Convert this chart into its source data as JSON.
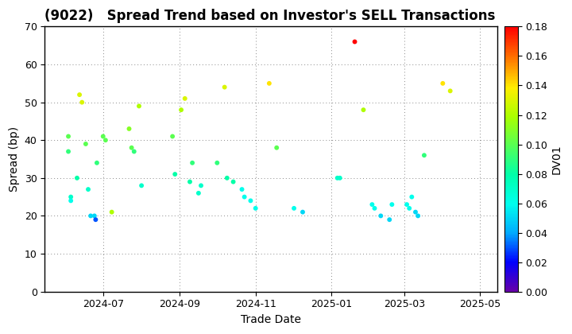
{
  "title": "(9022)   Spread Trend based on Investor's SELL Transactions",
  "xlabel": "Trade Date",
  "ylabel": "Spread (bp)",
  "colorbar_label": "DV01",
  "ylim": [
    0,
    70
  ],
  "clim": [
    0.0,
    0.18
  ],
  "points": [
    {
      "date": "2024-06-03",
      "spread": 37,
      "dv01": 0.09
    },
    {
      "date": "2024-06-03",
      "spread": 41,
      "dv01": 0.1
    },
    {
      "date": "2024-06-05",
      "spread": 25,
      "dv01": 0.07
    },
    {
      "date": "2024-06-05",
      "spread": 24,
      "dv01": 0.06
    },
    {
      "date": "2024-06-10",
      "spread": 30,
      "dv01": 0.08
    },
    {
      "date": "2024-06-12",
      "spread": 52,
      "dv01": 0.13
    },
    {
      "date": "2024-06-14",
      "spread": 50,
      "dv01": 0.13
    },
    {
      "date": "2024-06-17",
      "spread": 39,
      "dv01": 0.1
    },
    {
      "date": "2024-06-19",
      "spread": 27,
      "dv01": 0.07
    },
    {
      "date": "2024-06-21",
      "spread": 20,
      "dv01": 0.05
    },
    {
      "date": "2024-06-24",
      "spread": 20,
      "dv01": 0.05
    },
    {
      "date": "2024-06-25",
      "spread": 19,
      "dv01": 0.03
    },
    {
      "date": "2024-06-26",
      "spread": 34,
      "dv01": 0.09
    },
    {
      "date": "2024-07-01",
      "spread": 41,
      "dv01": 0.1
    },
    {
      "date": "2024-07-03",
      "spread": 40,
      "dv01": 0.1
    },
    {
      "date": "2024-07-08",
      "spread": 21,
      "dv01": 0.12
    },
    {
      "date": "2024-07-22",
      "spread": 43,
      "dv01": 0.11
    },
    {
      "date": "2024-07-24",
      "spread": 38,
      "dv01": 0.1
    },
    {
      "date": "2024-07-26",
      "spread": 37,
      "dv01": 0.09
    },
    {
      "date": "2024-07-30",
      "spread": 49,
      "dv01": 0.12
    },
    {
      "date": "2024-08-01",
      "spread": 28,
      "dv01": 0.07
    },
    {
      "date": "2024-08-26",
      "spread": 41,
      "dv01": 0.1
    },
    {
      "date": "2024-08-28",
      "spread": 31,
      "dv01": 0.08
    },
    {
      "date": "2024-09-02",
      "spread": 48,
      "dv01": 0.12
    },
    {
      "date": "2024-09-05",
      "spread": 51,
      "dv01": 0.13
    },
    {
      "date": "2024-09-09",
      "spread": 29,
      "dv01": 0.08
    },
    {
      "date": "2024-09-11",
      "spread": 34,
      "dv01": 0.09
    },
    {
      "date": "2024-09-16",
      "spread": 26,
      "dv01": 0.07
    },
    {
      "date": "2024-09-18",
      "spread": 28,
      "dv01": 0.07
    },
    {
      "date": "2024-10-01",
      "spread": 34,
      "dv01": 0.09
    },
    {
      "date": "2024-10-07",
      "spread": 54,
      "dv01": 0.13
    },
    {
      "date": "2024-10-09",
      "spread": 30,
      "dv01": 0.08
    },
    {
      "date": "2024-10-14",
      "spread": 29,
      "dv01": 0.08
    },
    {
      "date": "2024-10-21",
      "spread": 27,
      "dv01": 0.06
    },
    {
      "date": "2024-10-23",
      "spread": 25,
      "dv01": 0.06
    },
    {
      "date": "2024-10-28",
      "spread": 24,
      "dv01": 0.06
    },
    {
      "date": "2024-11-01",
      "spread": 22,
      "dv01": 0.06
    },
    {
      "date": "2024-11-12",
      "spread": 55,
      "dv01": 0.14
    },
    {
      "date": "2024-11-18",
      "spread": 38,
      "dv01": 0.1
    },
    {
      "date": "2024-12-02",
      "spread": 22,
      "dv01": 0.06
    },
    {
      "date": "2024-12-09",
      "spread": 21,
      "dv01": 0.05
    },
    {
      "date": "2025-01-06",
      "spread": 30,
      "dv01": 0.07
    },
    {
      "date": "2025-01-08",
      "spread": 30,
      "dv01": 0.07
    },
    {
      "date": "2025-01-20",
      "spread": 66,
      "dv01": 0.18
    },
    {
      "date": "2025-01-27",
      "spread": 48,
      "dv01": 0.12
    },
    {
      "date": "2025-02-03",
      "spread": 23,
      "dv01": 0.06
    },
    {
      "date": "2025-02-05",
      "spread": 22,
      "dv01": 0.06
    },
    {
      "date": "2025-02-10",
      "spread": 20,
      "dv01": 0.05
    },
    {
      "date": "2025-02-17",
      "spread": 19,
      "dv01": 0.05
    },
    {
      "date": "2025-02-19",
      "spread": 23,
      "dv01": 0.06
    },
    {
      "date": "2025-03-03",
      "spread": 23,
      "dv01": 0.06
    },
    {
      "date": "2025-03-05",
      "spread": 22,
      "dv01": 0.06
    },
    {
      "date": "2025-03-07",
      "spread": 25,
      "dv01": 0.06
    },
    {
      "date": "2025-03-10",
      "spread": 21,
      "dv01": 0.05
    },
    {
      "date": "2025-03-12",
      "spread": 20,
      "dv01": 0.05
    },
    {
      "date": "2025-03-17",
      "spread": 36,
      "dv01": 0.09
    },
    {
      "date": "2025-04-01",
      "spread": 55,
      "dv01": 0.14
    },
    {
      "date": "2025-04-07",
      "spread": 53,
      "dv01": 0.13
    }
  ],
  "background_color": "#ffffff",
  "grid_color": "#888888",
  "title_fontsize": 12,
  "label_fontsize": 10,
  "tick_fontsize": 9,
  "dot_size": 18,
  "colorbar_ticks": [
    0.0,
    0.02,
    0.04,
    0.06,
    0.08,
    0.1,
    0.12,
    0.14,
    0.16,
    0.18
  ],
  "xlim_start": "2024-05-15",
  "xlim_end": "2025-05-15",
  "xtick_dates": [
    "2024-07-01",
    "2024-09-01",
    "2024-11-01",
    "2025-01-01",
    "2025-03-01",
    "2025-05-01"
  ],
  "xtick_labels": [
    "2024-07",
    "2024-09",
    "2024-11",
    "2025-01",
    "2025-03",
    "2025-05"
  ]
}
